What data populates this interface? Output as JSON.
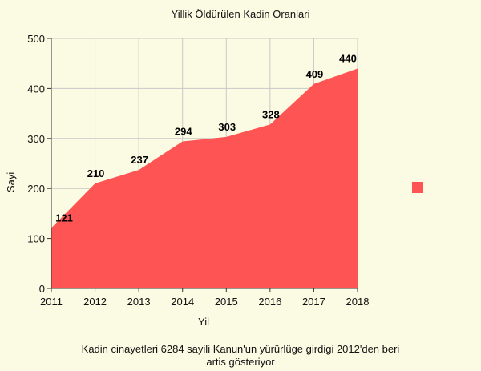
{
  "chart_data": {
    "type": "area",
    "title": "Yillik Öldürülen Kadin Oranlari",
    "xlabel": "Yil",
    "ylabel": "Sayi",
    "x": [
      2011,
      2012,
      2013,
      2014,
      2015,
      2016,
      2017,
      2018
    ],
    "values": [
      121,
      210,
      237,
      294,
      303,
      328,
      409,
      440
    ],
    "data_labels": [
      "121",
      "210",
      "237",
      "294",
      "303",
      "328",
      "409",
      "440"
    ],
    "ylim": [
      0,
      500
    ],
    "yticks": [
      0,
      100,
      200,
      300,
      400,
      500
    ],
    "grid": true,
    "legend_position": "right",
    "color": "#ff5454"
  },
  "caption_lines": [
    "Kadin cinayetleri 6284 sayili Kanun'un yürürlüge girdigi 2012'den beri",
    "artis gösteriyor"
  ]
}
